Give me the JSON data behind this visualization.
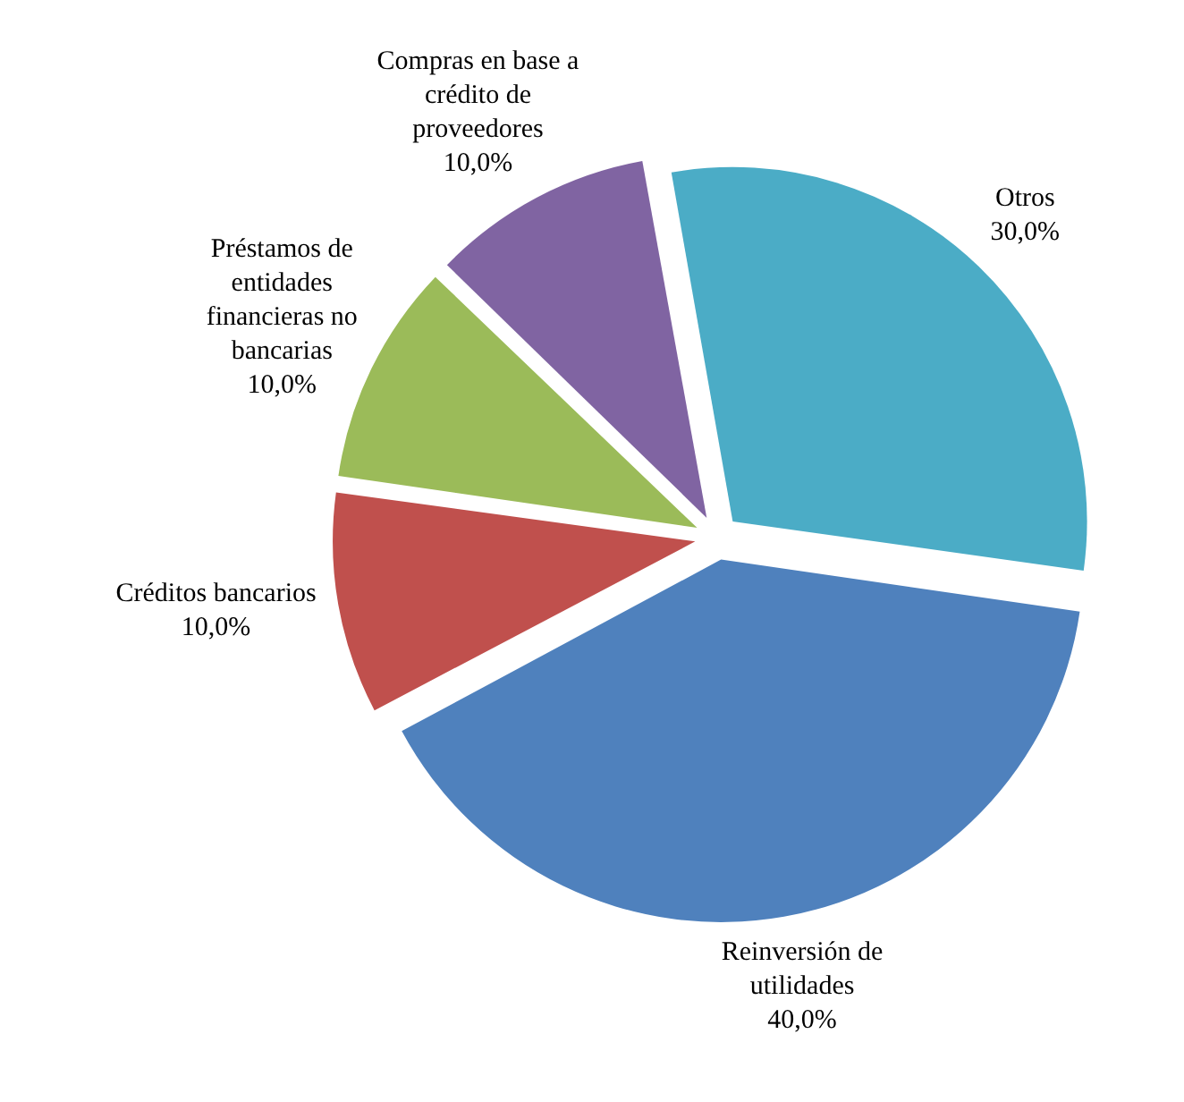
{
  "chart_data": {
    "type": "pie",
    "categories": [
      "Otros",
      "Reinversión de utilidades",
      "Créditos bancarios",
      "Préstamos de entidades financieras no bancarias",
      "Compras en base a crédito de proveedores"
    ],
    "values": [
      30,
      40,
      10,
      10,
      10
    ],
    "colors": [
      "#4bacc6",
      "#4f81bd",
      "#c0504d",
      "#9bbb59",
      "#8064a2"
    ],
    "value_labels": [
      "30,0%",
      "40,0%",
      "10,0%",
      "10,0%",
      "10,0%"
    ],
    "legend": false
  }
}
